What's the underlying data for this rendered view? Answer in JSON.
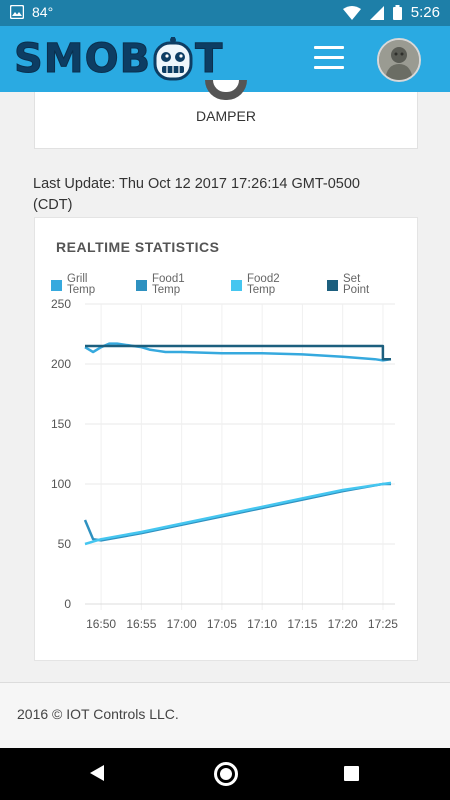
{
  "status_bar": {
    "temperature": "84°",
    "time": "5:26"
  },
  "app_bar": {
    "logo_text_left": "SMOB",
    "logo_text_right": "T",
    "menu_icon": "hamburger-menu-icon",
    "avatar_icon": "user-avatar"
  },
  "damper": {
    "label": "DAMPER"
  },
  "last_update": "Last Update: Thu Oct 12 2017 17:26:14 GMT-0500 (CDT)",
  "stats": {
    "title": "REALTIME STATISTICS",
    "legend": [
      {
        "line1": "Grill",
        "line2": "Temp",
        "color": "#36a9de"
      },
      {
        "line1": "Food1",
        "line2": "Temp",
        "color": "#2e91c0"
      },
      {
        "line1": "Food2",
        "line2": "Temp",
        "color": "#45c6f0"
      },
      {
        "line1": "Set",
        "line2": "Point",
        "color": "#1c5f7e"
      }
    ]
  },
  "chart_data": {
    "type": "line",
    "title": "REALTIME STATISTICS",
    "x_ticks": [
      "16:50",
      "16:55",
      "17:00",
      "17:05",
      "17:10",
      "17:15",
      "17:20",
      "17:25"
    ],
    "x_range": [
      "16:48",
      "17:26"
    ],
    "y_ticks": [
      0,
      50,
      100,
      150,
      200,
      250
    ],
    "ylim": [
      0,
      250
    ],
    "grid": true,
    "legend_position": "top",
    "series": [
      {
        "name": "Grill Temp",
        "color": "#36a9de",
        "points": [
          [
            "16:48",
            214
          ],
          [
            "16:49",
            210
          ],
          [
            "16:50",
            214
          ],
          [
            "16:51",
            217
          ],
          [
            "16:52",
            217
          ],
          [
            "16:53",
            216
          ],
          [
            "16:54",
            215
          ],
          [
            "16:55",
            214
          ],
          [
            "16:56",
            212
          ],
          [
            "16:57",
            211
          ],
          [
            "16:58",
            210
          ],
          [
            "17:00",
            210
          ],
          [
            "17:05",
            209
          ],
          [
            "17:10",
            209
          ],
          [
            "17:15",
            208
          ],
          [
            "17:20",
            206
          ],
          [
            "17:24",
            204
          ],
          [
            "17:25",
            203
          ],
          [
            "17:26",
            204
          ]
        ]
      },
      {
        "name": "Food1 Temp",
        "color": "#2e91c0",
        "points": [
          [
            "16:48",
            70
          ],
          [
            "16:49",
            54
          ],
          [
            "16:50",
            53
          ],
          [
            "16:55",
            59
          ],
          [
            "17:00",
            66
          ],
          [
            "17:05",
            73
          ],
          [
            "17:10",
            80
          ],
          [
            "17:15",
            87
          ],
          [
            "17:20",
            94
          ],
          [
            "17:25",
            100
          ],
          [
            "17:26",
            100
          ]
        ]
      },
      {
        "name": "Food2 Temp",
        "color": "#45c6f0",
        "points": [
          [
            "16:48",
            50
          ],
          [
            "16:49",
            52
          ],
          [
            "16:50",
            54
          ],
          [
            "16:55",
            60
          ],
          [
            "17:00",
            67
          ],
          [
            "17:05",
            74
          ],
          [
            "17:10",
            81
          ],
          [
            "17:15",
            88
          ],
          [
            "17:20",
            95
          ],
          [
            "17:25",
            100
          ],
          [
            "17:26",
            101
          ]
        ]
      },
      {
        "name": "Set Point",
        "color": "#1c5f7e",
        "points": [
          [
            "16:48",
            215
          ],
          [
            "17:00",
            215
          ],
          [
            "17:10",
            215
          ],
          [
            "17:20",
            215
          ],
          [
            "17:25",
            215
          ],
          [
            "17:25",
            204
          ],
          [
            "17:26",
            204
          ]
        ]
      }
    ]
  },
  "footer": {
    "text": "2016 © IOT Controls LLC."
  }
}
